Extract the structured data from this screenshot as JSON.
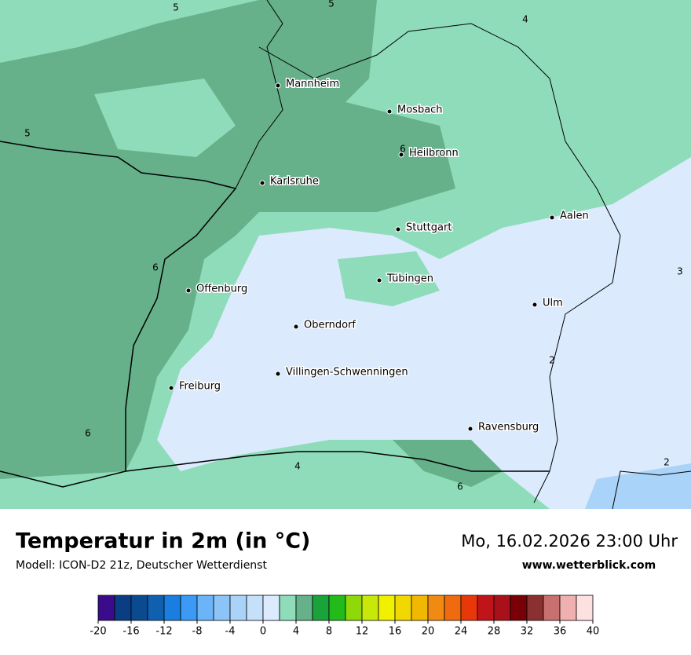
{
  "map": {
    "cities": [
      "Mannheim",
      "Mosbach",
      "Heilbronn",
      "Karlsruhe",
      "Aalen",
      "Stuttgart",
      "Tübingen",
      "Offenburg",
      "Ulm",
      "Oberndorf",
      "Villingen-Schwenningen",
      "Freiburg",
      "Ravensburg"
    ],
    "contour_labels": [
      "5",
      "5",
      "4",
      "5",
      "6",
      "6",
      "3",
      "2",
      "6",
      "2",
      "4",
      "6"
    ]
  },
  "title": "Temperatur in 2m (in °C)",
  "model": "Modell: ICON-D2 21z, Deutscher Wetterdienst",
  "datetime": "Mo, 16.02.2026 23:00 Uhr",
  "website": "www.wetterblick.com",
  "colorbar": {
    "bounds": [
      -20,
      -18,
      -16,
      -14,
      -12,
      -10,
      -8,
      -6,
      -4,
      -2,
      0,
      2,
      4,
      6,
      8,
      10,
      12,
      14,
      16,
      18,
      20,
      22,
      24,
      26,
      28,
      30,
      32,
      34,
      36,
      38,
      40
    ],
    "colors": [
      "#3a0b8a",
      "#0b3d82",
      "#0a4a8f",
      "#1060b0",
      "#1a7ee0",
      "#3a9af5",
      "#6ab4f7",
      "#8cc4f7",
      "#a9d3f8",
      "#c4e0fa",
      "#dbeafc",
      "#8fdcba",
      "#66b08a",
      "#1aa33a",
      "#22bb1a",
      "#8fd80a",
      "#c8e80a",
      "#f0f000",
      "#f0d800",
      "#f0b800",
      "#f08a10",
      "#f06a10",
      "#e8380a",
      "#c0141a",
      "#a8101a",
      "#7a0008",
      "#8a3030",
      "#c87070",
      "#f0b0b0",
      "#fde0e0"
    ],
    "ticks": [
      -20,
      -16,
      -12,
      -8,
      -4,
      0,
      4,
      8,
      12,
      16,
      20,
      24,
      28,
      32,
      36,
      40
    ]
  }
}
